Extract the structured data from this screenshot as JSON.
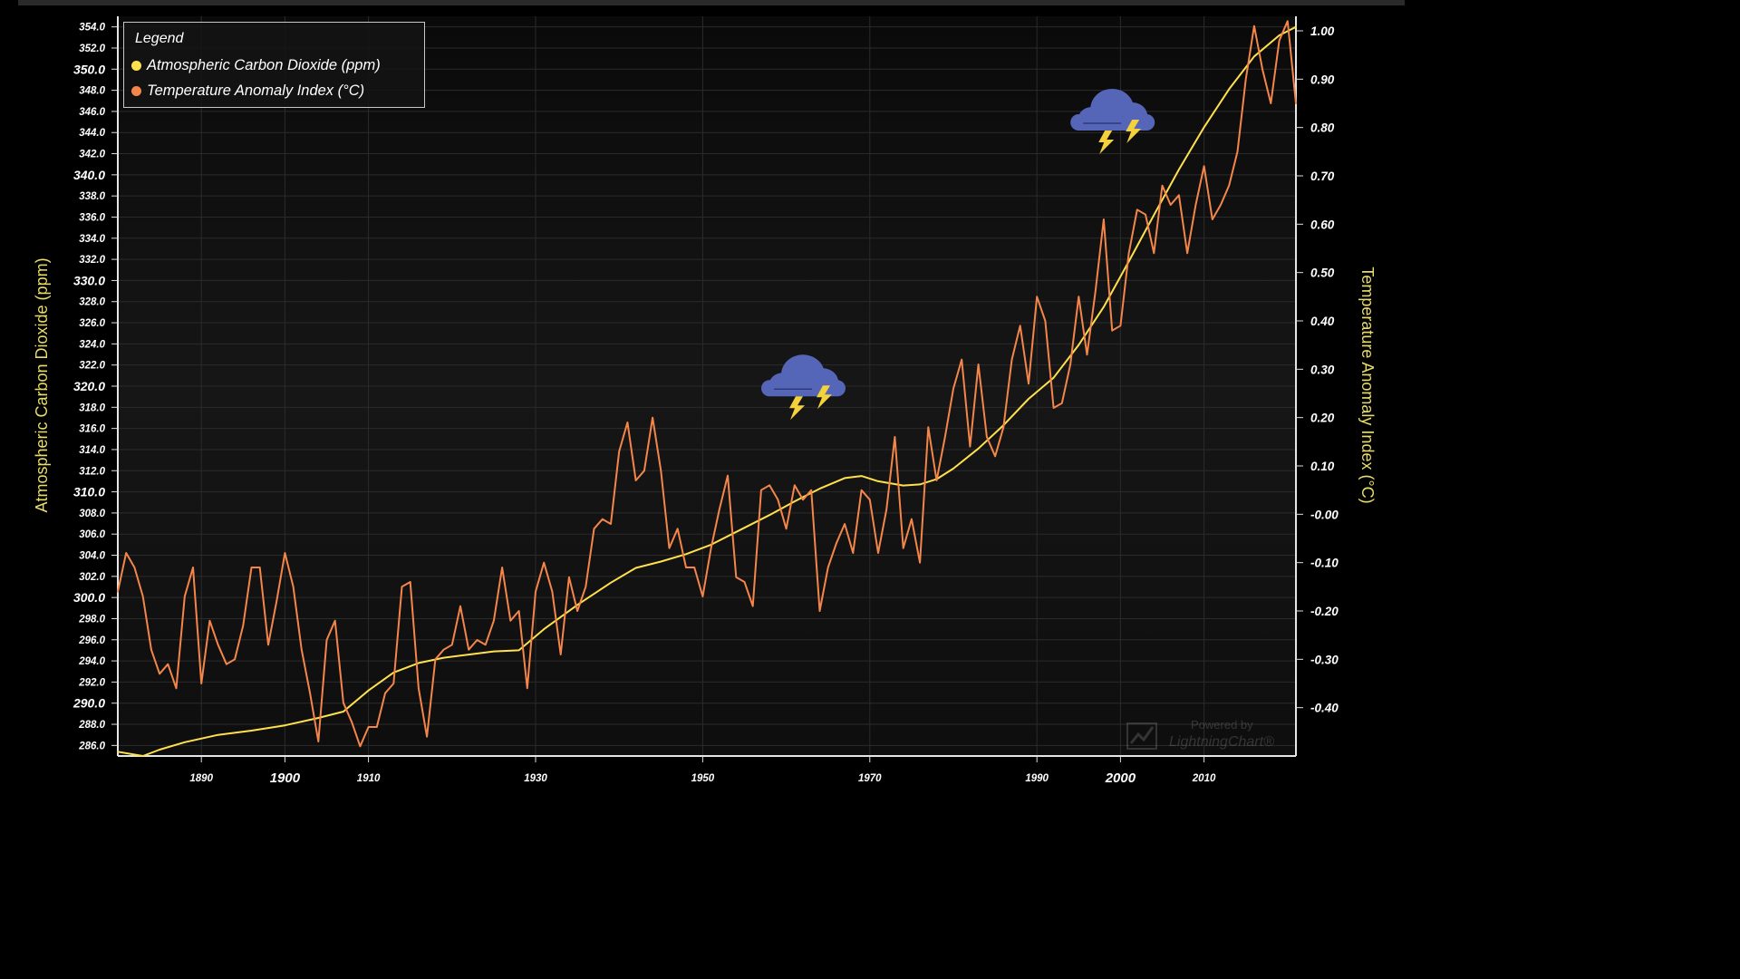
{
  "chart_data": {
    "type": "line",
    "legend": {
      "title": "Legend",
      "placement": "top-left"
    },
    "series": [
      {
        "name": "Atmospheric Carbon Dioxide (ppm)",
        "axis": "left",
        "color": "#ffe14d",
        "x": [
          1880,
          1883,
          1885,
          1888,
          1892,
          1896,
          1900,
          1904,
          1907,
          1910,
          1913,
          1916,
          1919,
          1922,
          1925,
          1928,
          1931,
          1935,
          1939,
          1942,
          1945,
          1948,
          1951,
          1955,
          1958,
          1961,
          1964,
          1967,
          1969,
          1971,
          1974,
          1976,
          1978,
          1980,
          1983,
          1986,
          1989,
          1992,
          1995,
          1998,
          2001,
          2004,
          2007,
          2010,
          2013,
          2016,
          2019,
          2021
        ],
        "values": [
          285.4,
          285.0,
          285.6,
          286.3,
          287.0,
          287.4,
          287.9,
          288.6,
          289.2,
          291.2,
          292.9,
          293.8,
          294.3,
          294.6,
          294.9,
          295.0,
          297.0,
          299.3,
          301.4,
          302.8,
          303.4,
          304.1,
          305.0,
          306.6,
          307.8,
          309.1,
          310.3,
          311.3,
          311.5,
          311.0,
          310.6,
          310.7,
          311.2,
          312.2,
          314.1,
          316.3,
          318.8,
          320.8,
          323.9,
          327.5,
          331.8,
          336.2,
          340.5,
          344.5,
          348.1,
          351.2,
          353.2,
          354.0
        ]
      },
      {
        "name": "Temperature Anomaly Index (°C)",
        "axis": "right",
        "color": "#f5864a",
        "x": [
          1880,
          1881,
          1882,
          1883,
          1884,
          1885,
          1886,
          1887,
          1888,
          1889,
          1890,
          1891,
          1892,
          1893,
          1894,
          1895,
          1896,
          1897,
          1898,
          1899,
          1900,
          1901,
          1902,
          1903,
          1904,
          1905,
          1906,
          1907,
          1908,
          1909,
          1910,
          1911,
          1912,
          1913,
          1914,
          1915,
          1916,
          1917,
          1918,
          1919,
          1920,
          1921,
          1922,
          1923,
          1924,
          1925,
          1926,
          1927,
          1928,
          1929,
          1930,
          1931,
          1932,
          1933,
          1934,
          1935,
          1936,
          1937,
          1938,
          1939,
          1940,
          1941,
          1942,
          1943,
          1944,
          1945,
          1946,
          1947,
          1948,
          1949,
          1950,
          1951,
          1952,
          1953,
          1954,
          1955,
          1956,
          1957,
          1958,
          1959,
          1960,
          1961,
          1962,
          1963,
          1964,
          1965,
          1966,
          1967,
          1968,
          1969,
          1970,
          1971,
          1972,
          1973,
          1974,
          1975,
          1976,
          1977,
          1978,
          1979,
          1980,
          1981,
          1982,
          1983,
          1984,
          1985,
          1986,
          1987,
          1988,
          1989,
          1990,
          1991,
          1992,
          1993,
          1994,
          1995,
          1996,
          1997,
          1998,
          1999,
          2000,
          2001,
          2002,
          2003,
          2004,
          2005,
          2006,
          2007,
          2008,
          2009,
          2010,
          2011,
          2012,
          2013,
          2014,
          2015,
          2016,
          2017,
          2018,
          2019,
          2020,
          2021
        ],
        "values": [
          -0.16,
          -0.08,
          -0.11,
          -0.17,
          -0.28,
          -0.33,
          -0.31,
          -0.36,
          -0.17,
          -0.11,
          -0.35,
          -0.22,
          -0.27,
          -0.31,
          -0.3,
          -0.23,
          -0.11,
          -0.11,
          -0.27,
          -0.18,
          -0.08,
          -0.15,
          -0.28,
          -0.37,
          -0.47,
          -0.26,
          -0.22,
          -0.39,
          -0.43,
          -0.48,
          -0.44,
          -0.44,
          -0.37,
          -0.35,
          -0.15,
          -0.14,
          -0.36,
          -0.46,
          -0.3,
          -0.28,
          -0.27,
          -0.19,
          -0.28,
          -0.26,
          -0.27,
          -0.22,
          -0.11,
          -0.22,
          -0.2,
          -0.36,
          -0.16,
          -0.1,
          -0.16,
          -0.29,
          -0.13,
          -0.2,
          -0.15,
          -0.03,
          -0.01,
          -0.02,
          0.13,
          0.19,
          0.07,
          0.09,
          0.2,
          0.09,
          -0.07,
          -0.03,
          -0.11,
          -0.11,
          -0.17,
          -0.07,
          0.01,
          0.08,
          -0.13,
          -0.14,
          -0.19,
          0.05,
          0.06,
          0.03,
          -0.03,
          0.06,
          0.03,
          0.05,
          -0.2,
          -0.11,
          -0.06,
          -0.02,
          -0.08,
          0.05,
          0.03,
          -0.08,
          0.01,
          0.16,
          -0.07,
          -0.01,
          -0.1,
          0.18,
          0.07,
          0.16,
          0.26,
          0.32,
          0.14,
          0.31,
          0.16,
          0.12,
          0.18,
          0.32,
          0.39,
          0.27,
          0.45,
          0.4,
          0.22,
          0.23,
          0.31,
          0.45,
          0.33,
          0.46,
          0.61,
          0.38,
          0.39,
          0.54,
          0.63,
          0.62,
          0.54,
          0.68,
          0.64,
          0.66,
          0.54,
          0.64,
          0.72,
          0.61,
          0.64,
          0.68,
          0.75,
          0.9,
          1.01,
          0.92,
          0.85,
          0.98,
          1.02,
          0.85
        ]
      }
    ],
    "y_left": {
      "label": "Atmospheric Carbon Dioxide (ppm)",
      "range": [
        285.0,
        355.0
      ],
      "ticks": [
        "354.0",
        "352.0",
        "350.0",
        "348.0",
        "346.0",
        "344.0",
        "342.0",
        "340.0",
        "338.0",
        "336.0",
        "334.0",
        "332.0",
        "330.0",
        "328.0",
        "326.0",
        "324.0",
        "322.0",
        "320.0",
        "318.0",
        "316.0",
        "314.0",
        "312.0",
        "310.0",
        "308.0",
        "306.0",
        "304.0",
        "302.0",
        "300.0",
        "298.0",
        "296.0",
        "294.0",
        "292.0",
        "290.0",
        "288.0",
        "286.0"
      ],
      "major_ticks": [
        "350.0",
        "340.0",
        "330.0",
        "320.0",
        "310.0",
        "300.0",
        "290.0"
      ]
    },
    "y_right": {
      "label": "Temperature Anomaly Index (°C)",
      "range": [
        -0.5,
        1.03
      ],
      "ticks": [
        "1.00",
        "0.90",
        "0.80",
        "0.70",
        "0.60",
        "0.50",
        "0.40",
        "0.30",
        "0.20",
        "0.10",
        "-0.00",
        "-0.10",
        "-0.20",
        "-0.30",
        "-0.40"
      ]
    },
    "x_axis": {
      "range": [
        1880,
        2021
      ],
      "ticks": [
        "1890",
        "1900",
        "1910",
        "1930",
        "1950",
        "1970",
        "1990",
        "2000",
        "2010"
      ],
      "major_ticks": [
        "1900",
        "2000"
      ]
    },
    "grid": true,
    "annotations": [
      {
        "type": "storm-cloud-icon",
        "x": 1962,
        "y_right": 0.27
      },
      {
        "type": "storm-cloud-icon",
        "x": 1999,
        "y_right": 0.82
      }
    ],
    "colors": {
      "background": "#0c0c0c",
      "grid": "#2b2b2b",
      "axis_title": "#e8dc6a"
    }
  },
  "watermark": {
    "line1": "Powered by",
    "line2": "LightningChart®"
  }
}
